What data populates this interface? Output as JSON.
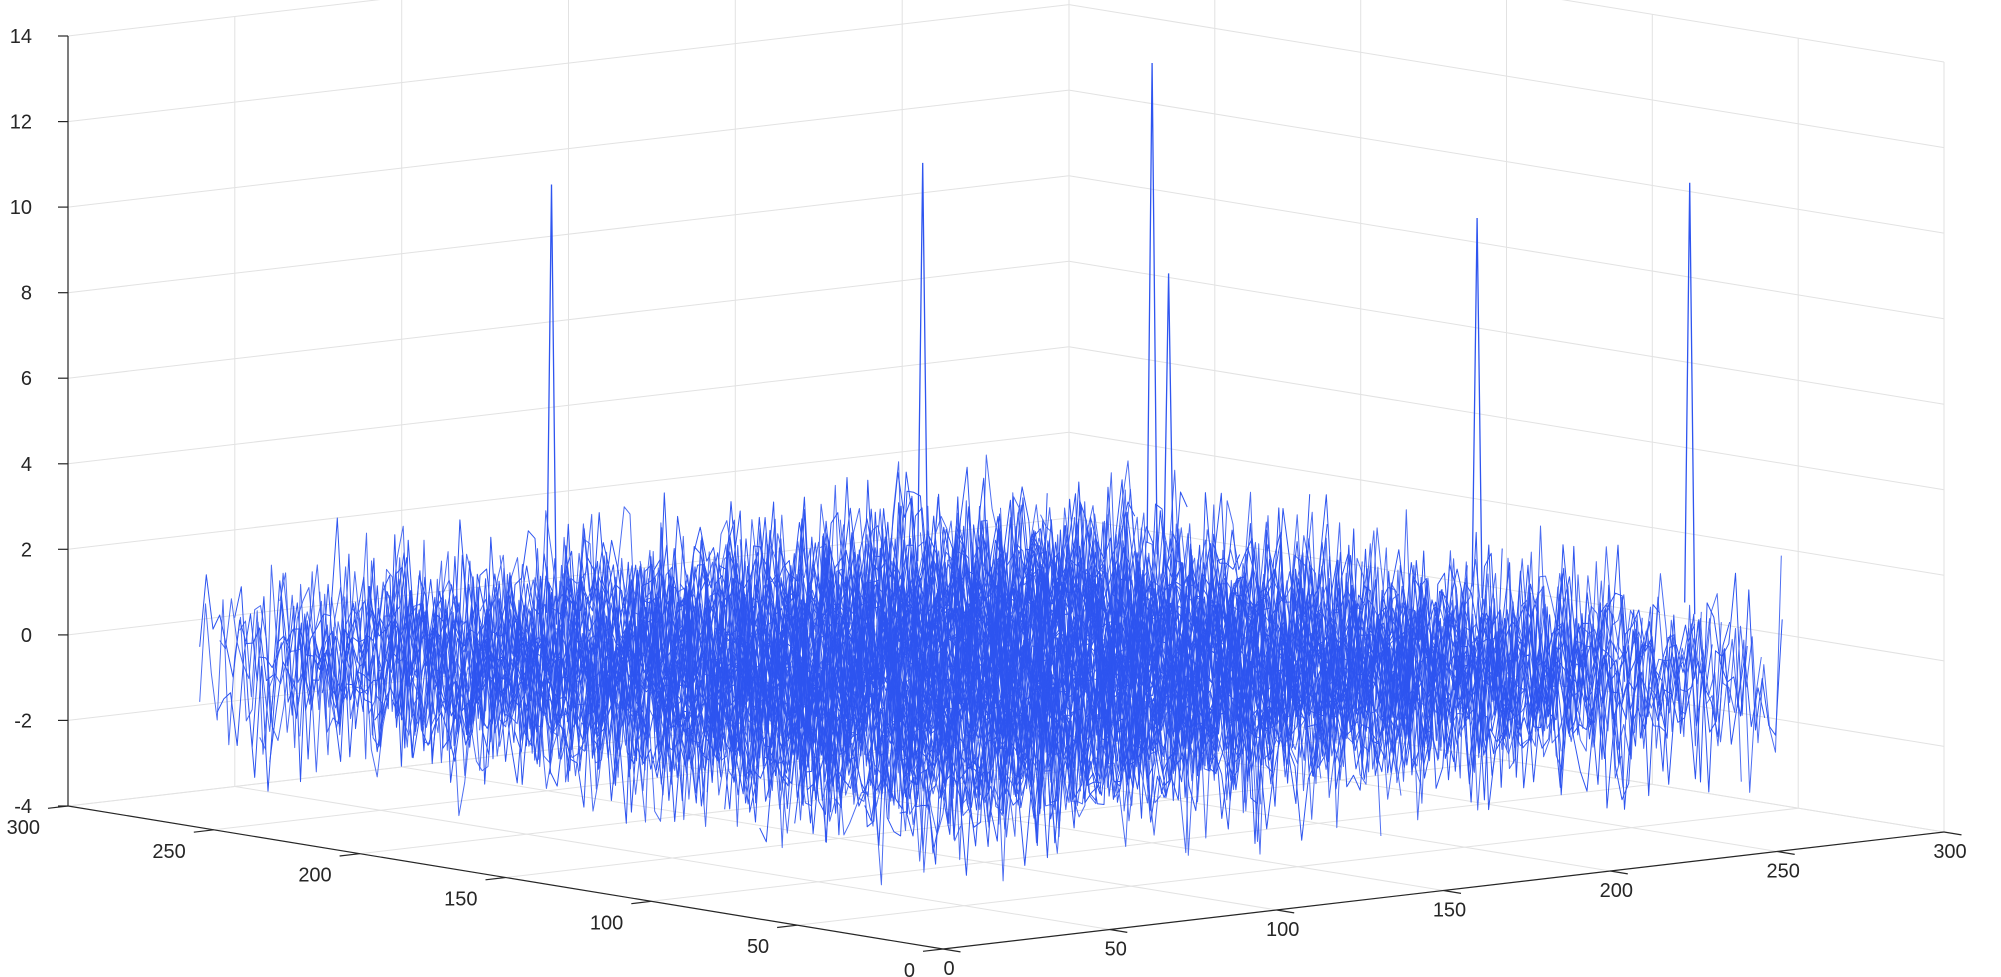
{
  "chart_data": {
    "type": "surface-mesh",
    "title": "",
    "xlabel": "",
    "ylabel": "",
    "zlabel": "",
    "x_ticks": [
      0,
      50,
      100,
      150,
      200,
      250,
      300
    ],
    "y_ticks": [
      0,
      50,
      100,
      150,
      200,
      250,
      300
    ],
    "z_ticks": [
      -4,
      -2,
      0,
      2,
      4,
      6,
      8,
      10,
      12,
      14
    ],
    "z_tick_labels": [
      "-4",
      "-2",
      "0",
      "2",
      "4",
      "6",
      "8",
      "10",
      "12",
      "14"
    ],
    "xlim": [
      0,
      300
    ],
    "ylim": [
      0,
      300
    ],
    "zlim": [
      -4,
      14
    ],
    "z_exponent": "×10⁻³",
    "grid": true,
    "line_color": "#2e55f0",
    "data_extent": [
      1,
      256
    ],
    "noise_floor_range": [
      -3.5,
      3.5
    ],
    "spikes": [
      {
        "x": 40,
        "y": 180,
        "z": 11.5
      },
      {
        "x": 160,
        "y": 190,
        "z": 10.8
      },
      {
        "x": 190,
        "y": 140,
        "z": 8.5
      },
      {
        "x": 220,
        "y": 180,
        "z": 12.7
      },
      {
        "x": 230,
        "y": 80,
        "z": 10.1
      },
      {
        "x": 250,
        "y": 30,
        "z": 11.3
      }
    ]
  }
}
